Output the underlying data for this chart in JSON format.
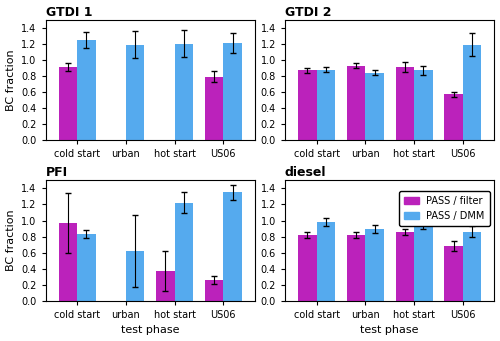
{
  "subplots": [
    {
      "title": "GTDI 1",
      "categories": [
        "cold start",
        "urban",
        "hot start",
        "US06"
      ],
      "pass_filter": [
        0.91,
        null,
        null,
        0.79
      ],
      "pass_filter_err": [
        0.05,
        null,
        null,
        0.07
      ],
      "pass_dmm": [
        1.25,
        1.19,
        1.2,
        1.21
      ],
      "pass_dmm_err": [
        0.1,
        0.17,
        0.17,
        0.13
      ]
    },
    {
      "title": "GTDI 2",
      "categories": [
        "cold start",
        "urban",
        "hot start",
        "US06"
      ],
      "pass_filter": [
        0.87,
        0.93,
        0.91,
        0.57
      ],
      "pass_filter_err": [
        0.03,
        0.03,
        0.06,
        0.03
      ],
      "pass_dmm": [
        0.88,
        0.84,
        0.87,
        1.19
      ],
      "pass_dmm_err": [
        0.03,
        0.03,
        0.06,
        0.14
      ]
    },
    {
      "title": "PFI",
      "categories": [
        "cold start",
        "urban",
        "hot start",
        "US06"
      ],
      "pass_filter": [
        0.97,
        null,
        0.37,
        0.26
      ],
      "pass_filter_err": [
        0.37,
        null,
        0.25,
        0.05
      ],
      "pass_dmm": [
        0.83,
        0.62,
        1.22,
        1.35
      ],
      "pass_dmm_err": [
        0.05,
        0.45,
        0.13,
        0.09
      ]
    },
    {
      "title": "diesel",
      "categories": [
        "cold start",
        "urban",
        "hot start",
        "US06"
      ],
      "pass_filter": [
        0.82,
        0.82,
        0.86,
        0.68
      ],
      "pass_filter_err": [
        0.04,
        0.04,
        0.04,
        0.06
      ],
      "pass_dmm": [
        0.98,
        0.89,
        0.94,
        0.86
      ],
      "pass_dmm_err": [
        0.05,
        0.05,
        0.05,
        0.07
      ]
    }
  ],
  "color_filter": "#bb22bb",
  "color_dmm": "#55aaee",
  "bar_width": 0.38,
  "ylim": [
    0.0,
    1.5
  ],
  "yticks": [
    0.0,
    0.2,
    0.4,
    0.6,
    0.8,
    1.0,
    1.2,
    1.4
  ],
  "ylabel": "BC fraction",
  "xlabel": "test phase",
  "legend_labels": [
    "PASS / filter",
    "PASS / DMM"
  ],
  "fig_facecolor": "#ffffff",
  "ax_facecolor": "#ffffff"
}
